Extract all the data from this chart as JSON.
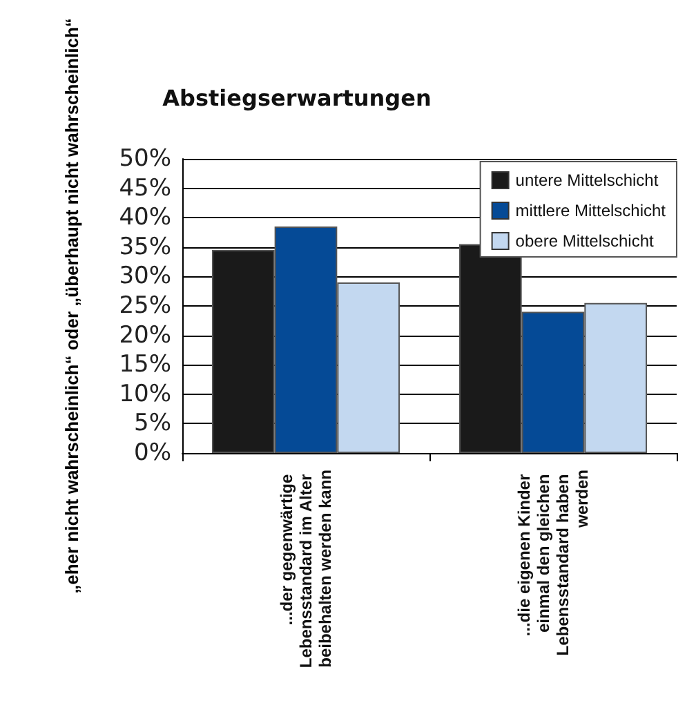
{
  "chart_data": {
    "type": "bar",
    "title": "Abstiegserwartungen",
    "ylabel": "„eher nicht wahrscheinlich“ oder „überhaupt nicht wahrscheinlich“",
    "categories": [
      "...der gegenwärtige Lebensstandard im Alter beibehalten werden kann",
      "...die eigenen Kinder einmal den gleichen Lebensstandard haben werden"
    ],
    "series": [
      {
        "name": "untere Mittelschicht",
        "color": "#1a1a1a",
        "values": [
          34.5,
          35.5
        ]
      },
      {
        "name": "mittlere Mittelschicht",
        "color": "#054a96",
        "values": [
          38.5,
          24
        ]
      },
      {
        "name": "obere Mittelschicht",
        "color": "#c3d8f0",
        "values": [
          29,
          25.5
        ]
      }
    ],
    "ylim": [
      0,
      50
    ],
    "yticks": [
      {
        "value": 0,
        "label": "0%"
      },
      {
        "value": 5,
        "label": "5%"
      },
      {
        "value": 10,
        "label": "10%"
      },
      {
        "value": 15,
        "label": "15%"
      },
      {
        "value": 20,
        "label": "20%"
      },
      {
        "value": 25,
        "label": "25%"
      },
      {
        "value": 30,
        "label": "30%"
      },
      {
        "value": 35,
        "label": "35%"
      },
      {
        "value": 40,
        "label": "40%"
      },
      {
        "value": 45,
        "label": "45%"
      },
      {
        "value": 50,
        "label": "50%"
      }
    ],
    "grid": "y",
    "legend": "top right"
  }
}
